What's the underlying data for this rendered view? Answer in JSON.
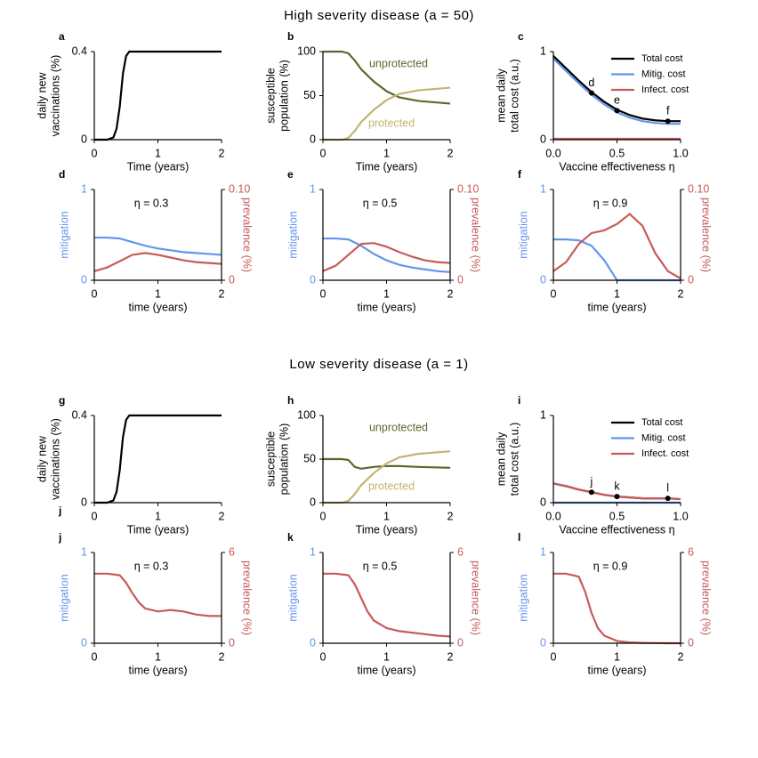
{
  "sections": [
    "High severity disease (a = 50)",
    "Low severity disease (a = 1)"
  ],
  "chart_data": [
    {
      "type": "line",
      "letter": "a",
      "x": [
        0,
        0.2,
        0.3,
        0.35,
        0.4,
        0.45,
        0.5,
        0.55,
        0.6,
        1,
        1.5,
        2
      ],
      "xlim": [
        0,
        2
      ],
      "xticks": [
        0,
        1,
        2
      ],
      "ylim": [
        0,
        0.4
      ],
      "yticks": [
        0,
        0.4
      ],
      "xlabel": "Time (years)",
      "ylabel": [
        "daily new",
        "vaccinations (%)"
      ],
      "series": [
        {
          "name": "vaccinations",
          "color": "#000000",
          "values": [
            0,
            0,
            0.01,
            0.05,
            0.15,
            0.3,
            0.38,
            0.4,
            0.4,
            0.4,
            0.4,
            0.4
          ]
        }
      ]
    },
    {
      "type": "line",
      "letter": "b",
      "x": [
        0,
        0.3,
        0.4,
        0.5,
        0.6,
        0.8,
        1,
        1.2,
        1.5,
        2
      ],
      "xlim": [
        0,
        2
      ],
      "xticks": [
        0,
        1,
        2
      ],
      "ylim": [
        0,
        100
      ],
      "yticks": [
        0,
        50,
        100
      ],
      "xlabel": "Time (years)",
      "ylabel": [
        "susceptible",
        "population (%)"
      ],
      "inline_names": true,
      "series": [
        {
          "name": "unprotected",
          "color": "#556b2f",
          "values": [
            100,
            100,
            98,
            90,
            80,
            66,
            55,
            48,
            44,
            41
          ]
        },
        {
          "name": "protected",
          "color": "#c2b56c",
          "values": [
            0,
            0,
            2,
            10,
            20,
            34,
            45,
            52,
            56,
            59
          ]
        }
      ]
    },
    {
      "type": "line",
      "letter": "c",
      "x": [
        0,
        0.1,
        0.2,
        0.3,
        0.4,
        0.5,
        0.6,
        0.7,
        0.8,
        0.9,
        1
      ],
      "xlim": [
        0,
        1
      ],
      "xticks": [
        {
          "value": 0,
          "label": "0.0"
        },
        0.5,
        {
          "value": 1,
          "label": "1.0"
        }
      ],
      "ylim": [
        0,
        1
      ],
      "yticks": [
        0,
        1
      ],
      "xlabel": "Vaccine effectiveness η",
      "ylabel": [
        "mean daily",
        "total cost (a.u.)"
      ],
      "legend": "upper right",
      "series": [
        {
          "name": "Total cost",
          "color": "#000000",
          "values": [
            0.95,
            0.81,
            0.67,
            0.54,
            0.43,
            0.34,
            0.28,
            0.24,
            0.22,
            0.21,
            0.21
          ]
        },
        {
          "name": "Mitig. cost",
          "color": "#6495ed",
          "values": [
            0.92,
            0.78,
            0.64,
            0.51,
            0.4,
            0.31,
            0.25,
            0.21,
            0.19,
            0.18,
            0.18
          ]
        },
        {
          "name": "Infect. cost",
          "color": "#c85a5a",
          "values": [
            0.01,
            0.01,
            0.01,
            0.01,
            0.01,
            0.01,
            0.01,
            0.01,
            0.01,
            0.01,
            0.01
          ]
        }
      ],
      "markers": {
        "labels": [
          "d",
          "e",
          "f"
        ],
        "x": [
          0.3,
          0.5,
          0.9
        ],
        "values": [
          0.53,
          0.33,
          0.21
        ]
      }
    },
    {
      "type": "line",
      "letter": "d",
      "x": [
        0,
        0.2,
        0.4,
        0.6,
        0.8,
        1,
        1.2,
        1.4,
        1.6,
        1.8,
        2
      ],
      "xlim": [
        0,
        2
      ],
      "xticks": [
        0,
        1,
        2
      ],
      "ylim": [
        0,
        1
      ],
      "yticks": [
        0,
        1
      ],
      "y2lim": [
        0,
        0.1
      ],
      "y2ticks": [
        0,
        {
          "value": 0.1,
          "label": "0.10"
        }
      ],
      "xlabel": "time (years)",
      "ylabel": [
        "mitigation"
      ],
      "y2label": "prevalence (%)",
      "ycolor": "#6495ed",
      "y2color": "#c85a5a",
      "annotation": "η = 0.3",
      "series": [
        {
          "name": "mitigation",
          "color": "#6495ed",
          "values": [
            0.47,
            0.47,
            0.46,
            0.42,
            0.38,
            0.35,
            0.33,
            0.31,
            0.3,
            0.29,
            0.28
          ]
        },
        {
          "name": "prevalence",
          "color": "#c85a5a",
          "axis": "y2",
          "values": [
            0.01,
            0.014,
            0.021,
            0.028,
            0.03,
            0.028,
            0.025,
            0.022,
            0.02,
            0.019,
            0.018
          ]
        }
      ]
    },
    {
      "type": "line",
      "letter": "e",
      "x": [
        0,
        0.2,
        0.4,
        0.6,
        0.8,
        1,
        1.2,
        1.4,
        1.6,
        1.8,
        2
      ],
      "xlim": [
        0,
        2
      ],
      "xticks": [
        0,
        1,
        2
      ],
      "ylim": [
        0,
        1
      ],
      "yticks": [
        0,
        1
      ],
      "y2lim": [
        0,
        0.1
      ],
      "y2ticks": [
        0,
        {
          "value": 0.1,
          "label": "0.10"
        }
      ],
      "xlabel": "time (years)",
      "ylabel": [
        "mitigation"
      ],
      "y2label": "prevalence (%)",
      "ycolor": "#6495ed",
      "y2color": "#c85a5a",
      "annotation": "η = 0.5",
      "series": [
        {
          "name": "mitigation",
          "color": "#6495ed",
          "values": [
            0.46,
            0.46,
            0.45,
            0.38,
            0.29,
            0.22,
            0.17,
            0.14,
            0.12,
            0.1,
            0.09
          ]
        },
        {
          "name": "prevalence",
          "color": "#c85a5a",
          "axis": "y2",
          "values": [
            0.01,
            0.016,
            0.028,
            0.04,
            0.041,
            0.037,
            0.031,
            0.026,
            0.022,
            0.02,
            0.019
          ]
        }
      ]
    },
    {
      "type": "line",
      "letter": "f",
      "x": [
        0,
        0.2,
        0.4,
        0.6,
        0.8,
        1,
        1.2,
        1.4,
        1.6,
        1.8,
        2
      ],
      "xlim": [
        0,
        2
      ],
      "xticks": [
        0,
        1,
        2
      ],
      "ylim": [
        0,
        1
      ],
      "yticks": [
        0,
        1
      ],
      "y2lim": [
        0,
        0.1
      ],
      "y2ticks": [
        0,
        {
          "value": 0.1,
          "label": "0.10"
        }
      ],
      "xlabel": "time (years)",
      "ylabel": [
        "mitigation"
      ],
      "y2label": "prevalence (%)",
      "ycolor": "#6495ed",
      "y2color": "#c85a5a",
      "annotation": "η = 0.9",
      "series": [
        {
          "name": "mitigation",
          "color": "#6495ed",
          "values": [
            0.45,
            0.45,
            0.44,
            0.38,
            0.22,
            0,
            0,
            0,
            0,
            0,
            0
          ]
        },
        {
          "name": "prevalence",
          "color": "#c85a5a",
          "axis": "y2",
          "values": [
            0.01,
            0.02,
            0.04,
            0.052,
            0.055,
            0.062,
            0.073,
            0.06,
            0.03,
            0.01,
            0.002
          ]
        }
      ]
    },
    {
      "type": "line",
      "letter": "g",
      "extra_label": "j",
      "x": [
        0,
        0.2,
        0.3,
        0.35,
        0.4,
        0.45,
        0.5,
        0.55,
        0.6,
        1,
        1.5,
        2
      ],
      "xlim": [
        0,
        2
      ],
      "xticks": [
        0,
        1,
        2
      ],
      "ylim": [
        0,
        0.4
      ],
      "yticks": [
        0,
        0.4
      ],
      "xlabel": "Time (years)",
      "ylabel": [
        "daily new",
        "vaccinations (%)"
      ],
      "series": [
        {
          "name": "vaccinations",
          "color": "#000000",
          "values": [
            0,
            0,
            0.01,
            0.05,
            0.15,
            0.3,
            0.38,
            0.4,
            0.4,
            0.4,
            0.4,
            0.4
          ]
        }
      ]
    },
    {
      "type": "line",
      "letter": "h",
      "x": [
        0,
        0.3,
        0.4,
        0.5,
        0.6,
        0.8,
        1,
        1.2,
        1.5,
        2
      ],
      "xlim": [
        0,
        2
      ],
      "xticks": [
        0,
        1,
        2
      ],
      "ylim": [
        0,
        100
      ],
      "yticks": [
        0,
        50,
        100
      ],
      "xlabel": "Time (years)",
      "ylabel": [
        "susceptible",
        "population (%)"
      ],
      "inline_names": true,
      "series": [
        {
          "name": "unprotected",
          "color": "#556b2f",
          "values": [
            50,
            50,
            49,
            41,
            39,
            41,
            42,
            42,
            41,
            40
          ]
        },
        {
          "name": "protected",
          "color": "#c2b56c",
          "values": [
            0,
            0,
            2,
            10,
            20,
            34,
            45,
            52,
            56,
            59
          ]
        }
      ]
    },
    {
      "type": "line",
      "letter": "i",
      "x": [
        0,
        0.1,
        0.2,
        0.3,
        0.4,
        0.5,
        0.6,
        0.7,
        0.8,
        0.9,
        1
      ],
      "xlim": [
        0,
        1
      ],
      "xticks": [
        {
          "value": 0,
          "label": "0.0"
        },
        0.5,
        {
          "value": 1,
          "label": "1.0"
        }
      ],
      "ylim": [
        0,
        1
      ],
      "yticks": [
        0,
        1
      ],
      "xlabel": "Vaccine effectiveness η",
      "ylabel": [
        "mean daily",
        "total cost (a.u.)"
      ],
      "legend": "upper right",
      "series": [
        {
          "name": "Total cost",
          "color": "#000000",
          "values": [
            0.22,
            0.19,
            0.15,
            0.12,
            0.09,
            0.07,
            0.06,
            0.05,
            0.05,
            0.05,
            0.04
          ]
        },
        {
          "name": "Mitig. cost",
          "color": "#6495ed",
          "values": [
            0,
            0,
            0,
            0,
            0,
            0,
            0,
            0,
            0,
            0,
            0
          ]
        },
        {
          "name": "Infect. cost",
          "color": "#c85a5a",
          "values": [
            0.22,
            0.19,
            0.15,
            0.12,
            0.09,
            0.07,
            0.06,
            0.05,
            0.05,
            0.05,
            0.04
          ]
        }
      ],
      "markers": {
        "labels": [
          "j",
          "k",
          "l"
        ],
        "x": [
          0.3,
          0.5,
          0.9
        ],
        "values": [
          0.12,
          0.07,
          0.05
        ]
      }
    },
    {
      "type": "line",
      "letter": "j",
      "x": [
        0,
        0.2,
        0.4,
        0.5,
        0.6,
        0.7,
        0.8,
        1,
        1.2,
        1.4,
        1.6,
        1.8,
        2
      ],
      "xlim": [
        0,
        2
      ],
      "xticks": [
        0,
        1,
        2
      ],
      "ylim": [
        0,
        1
      ],
      "yticks": [
        0,
        1
      ],
      "y2lim": [
        0,
        6
      ],
      "y2ticks": [
        0,
        6
      ],
      "xlabel": "time (years)",
      "ylabel": [
        "mitigation"
      ],
      "y2label": "prevalence (%)",
      "ycolor": "#6495ed",
      "y2color": "#c85a5a",
      "annotation": "η = 0.3",
      "series": [
        {
          "name": "prevalence",
          "color": "#c85a5a",
          "axis": "y2",
          "values": [
            4.6,
            4.6,
            4.5,
            4,
            3.3,
            2.7,
            2.3,
            2.1,
            2.2,
            2.1,
            1.9,
            1.8,
            1.8
          ]
        }
      ]
    },
    {
      "type": "line",
      "letter": "k",
      "x": [
        0,
        0.2,
        0.4,
        0.5,
        0.6,
        0.7,
        0.8,
        1,
        1.2,
        1.4,
        1.6,
        1.8,
        2
      ],
      "xlim": [
        0,
        2
      ],
      "xticks": [
        0,
        1,
        2
      ],
      "ylim": [
        0,
        1
      ],
      "yticks": [
        0,
        1
      ],
      "y2lim": [
        0,
        6
      ],
      "y2ticks": [
        0,
        6
      ],
      "xlabel": "time (years)",
      "ylabel": [
        "mitigation"
      ],
      "y2label": "prevalence (%)",
      "ycolor": "#6495ed",
      "y2color": "#c85a5a",
      "annotation": "η = 0.5",
      "series": [
        {
          "name": "prevalence",
          "color": "#c85a5a",
          "axis": "y2",
          "values": [
            4.6,
            4.6,
            4.5,
            3.9,
            3,
            2.1,
            1.5,
            1,
            0.8,
            0.7,
            0.6,
            0.5,
            0.45
          ]
        }
      ]
    },
    {
      "type": "line",
      "letter": "l",
      "x": [
        0,
        0.2,
        0.4,
        0.5,
        0.6,
        0.7,
        0.8,
        1,
        1.2,
        1.4,
        1.6,
        1.8,
        2
      ],
      "xlim": [
        0,
        2
      ],
      "xticks": [
        0,
        1,
        2
      ],
      "ylim": [
        0,
        1
      ],
      "yticks": [
        0,
        1
      ],
      "y2lim": [
        0,
        6
      ],
      "y2ticks": [
        0,
        6
      ],
      "xlabel": "time (years)",
      "ylabel": [
        "mitigation"
      ],
      "y2label": "prevalence (%)",
      "ycolor": "#6495ed",
      "y2color": "#c85a5a",
      "annotation": "η = 0.9",
      "series": [
        {
          "name": "prevalence",
          "color": "#c85a5a",
          "axis": "y2",
          "values": [
            4.6,
            4.6,
            4.4,
            3.4,
            2,
            1,
            0.5,
            0.15,
            0.05,
            0.02,
            0.01,
            0,
            0
          ]
        }
      ]
    }
  ]
}
